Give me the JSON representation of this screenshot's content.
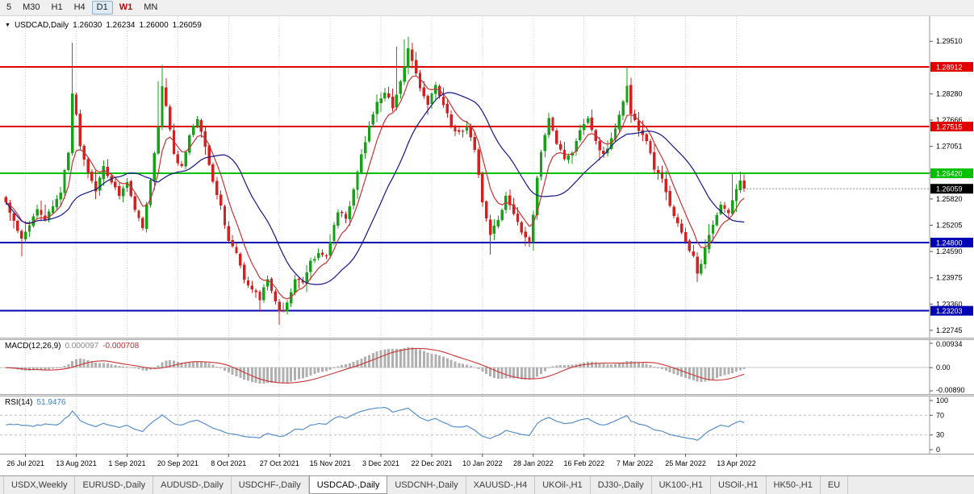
{
  "toolbar": {
    "periods": [
      {
        "label": "5",
        "active": false,
        "accent": false
      },
      {
        "label": "M30",
        "active": false,
        "accent": false
      },
      {
        "label": "H1",
        "active": false,
        "accent": false
      },
      {
        "label": "H4",
        "active": false,
        "accent": false
      },
      {
        "label": "D1",
        "active": true,
        "accent": false
      },
      {
        "label": "W1",
        "active": false,
        "accent": true
      },
      {
        "label": "MN",
        "active": false,
        "accent": false
      }
    ]
  },
  "chart": {
    "header": {
      "symbol": "USDCAD,Daily",
      "open": "1.26030",
      "high": "1.26234",
      "low": "1.26000",
      "close": "1.26059"
    }
  },
  "chart_data": {
    "type": "candlestick",
    "symbol": "USDCAD",
    "timeframe": "Daily",
    "num_candles": 190,
    "price_range": [
      1.22574,
      1.30099
    ],
    "up_color": "#15a315",
    "down_color": "#d32020",
    "y_ticks": [
      {
        "label": "1.29510",
        "value": 1.2951
      },
      {
        "label": "1.28280",
        "value": 1.2828
      },
      {
        "label": "1.27666",
        "value": 1.27666
      },
      {
        "label": "1.27051",
        "value": 1.27051
      },
      {
        "label": "1.26437",
        "value": 1.26437
      },
      {
        "label": "1.25820",
        "value": 1.2582
      },
      {
        "label": "1.25205",
        "value": 1.25205
      },
      {
        "label": "1.24590",
        "value": 1.2459
      },
      {
        "label": "1.23975",
        "value": 1.23975
      },
      {
        "label": "1.23360",
        "value": 1.2336
      },
      {
        "label": "1.22745",
        "value": 1.22745
      }
    ],
    "x_labels": [
      {
        "idx": 5,
        "text": "26 Jul 2021"
      },
      {
        "idx": 18,
        "text": "13 Aug 2021"
      },
      {
        "idx": 31,
        "text": "1 Sep 2021"
      },
      {
        "idx": 44,
        "text": "20 Sep 2021"
      },
      {
        "idx": 57,
        "text": "8 Oct 2021"
      },
      {
        "idx": 70,
        "text": "27 Oct 2021"
      },
      {
        "idx": 83,
        "text": "15 Nov 2021"
      },
      {
        "idx": 96,
        "text": "3 Dec 2021"
      },
      {
        "idx": 109,
        "text": "22 Dec 2021"
      },
      {
        "idx": 122,
        "text": "10 Jan 2022"
      },
      {
        "idx": 135,
        "text": "28 Jan 2022"
      },
      {
        "idx": 148,
        "text": "16 Feb 2022"
      },
      {
        "idx": 161,
        "text": "7 Mar 2022"
      },
      {
        "idx": 174,
        "text": "25 Mar 2022"
      },
      {
        "idx": 187,
        "text": "13 Apr 2022"
      }
    ],
    "close_anchors": [
      [
        0,
        1.257
      ],
      [
        2,
        1.2535
      ],
      [
        4,
        1.2487
      ],
      [
        6,
        1.252
      ],
      [
        8,
        1.2555
      ],
      [
        10,
        1.253
      ],
      [
        12,
        1.2565
      ],
      [
        14,
        1.26
      ],
      [
        16,
        1.269
      ],
      [
        17,
        1.283
      ],
      [
        18,
        1.278
      ],
      [
        19,
        1.2705
      ],
      [
        21,
        1.2645
      ],
      [
        23,
        1.2605
      ],
      [
        25,
        1.2655
      ],
      [
        27,
        1.2625
      ],
      [
        29,
        1.259
      ],
      [
        31,
        1.2625
      ],
      [
        33,
        1.2555
      ],
      [
        35,
        1.2515
      ],
      [
        37,
        1.2625
      ],
      [
        39,
        1.2755
      ],
      [
        40,
        1.2845
      ],
      [
        41,
        1.2805
      ],
      [
        43,
        1.2685
      ],
      [
        45,
        1.2655
      ],
      [
        47,
        1.2735
      ],
      [
        49,
        1.2765
      ],
      [
        51,
        1.2705
      ],
      [
        53,
        1.2625
      ],
      [
        55,
        1.2565
      ],
      [
        57,
        1.2485
      ],
      [
        59,
        1.2455
      ],
      [
        61,
        1.2395
      ],
      [
        63,
        1.2375
      ],
      [
        65,
        1.2345
      ],
      [
        67,
        1.2395
      ],
      [
        69,
        1.2345
      ],
      [
        70,
        1.2315
      ],
      [
        72,
        1.2335
      ],
      [
        74,
        1.2395
      ],
      [
        76,
        1.2385
      ],
      [
        78,
        1.2435
      ],
      [
        80,
        1.2455
      ],
      [
        82,
        1.2445
      ],
      [
        83,
        1.2485
      ],
      [
        85,
        1.2555
      ],
      [
        87,
        1.2535
      ],
      [
        89,
        1.2605
      ],
      [
        91,
        1.2685
      ],
      [
        93,
        1.2755
      ],
      [
        95,
        1.2805
      ],
      [
        97,
        1.2835
      ],
      [
        99,
        1.2795
      ],
      [
        101,
        1.2855
      ],
      [
        103,
        1.2935
      ],
      [
        104,
        1.2905
      ],
      [
        106,
        1.2845
      ],
      [
        108,
        1.2805
      ],
      [
        110,
        1.2845
      ],
      [
        112,
        1.2805
      ],
      [
        114,
        1.2755
      ],
      [
        116,
        1.2735
      ],
      [
        118,
        1.2755
      ],
      [
        120,
        1.2695
      ],
      [
        122,
        1.2575
      ],
      [
        124,
        1.2495
      ],
      [
        126,
        1.2535
      ],
      [
        128,
        1.2585
      ],
      [
        130,
        1.2545
      ],
      [
        132,
        1.2505
      ],
      [
        134,
        1.2485
      ],
      [
        135,
        1.2545
      ],
      [
        136,
        1.2635
      ],
      [
        137,
        1.2695
      ],
      [
        139,
        1.2775
      ],
      [
        141,
        1.2715
      ],
      [
        143,
        1.2675
      ],
      [
        145,
        1.2695
      ],
      [
        147,
        1.2745
      ],
      [
        149,
        1.2775
      ],
      [
        151,
        1.2715
      ],
      [
        153,
        1.2685
      ],
      [
        155,
        1.2725
      ],
      [
        157,
        1.2775
      ],
      [
        159,
        1.2845
      ],
      [
        160,
        1.2785
      ],
      [
        162,
        1.2745
      ],
      [
        164,
        1.2715
      ],
      [
        166,
        1.2655
      ],
      [
        168,
        1.2625
      ],
      [
        170,
        1.2565
      ],
      [
        172,
        1.2525
      ],
      [
        174,
        1.2485
      ],
      [
        176,
        1.2445
      ],
      [
        177,
        1.2405
      ],
      [
        179,
        1.2465
      ],
      [
        181,
        1.2525
      ],
      [
        183,
        1.2565
      ],
      [
        185,
        1.2545
      ],
      [
        187,
        1.2605
      ],
      [
        188,
        1.2625
      ],
      [
        189,
        1.26059
      ]
    ],
    "wick_highs": [
      [
        17,
        1.2948
      ],
      [
        39,
        1.2858
      ],
      [
        40,
        1.2896
      ],
      [
        100,
        1.2938
      ],
      [
        102,
        1.2955
      ],
      [
        103,
        1.2962
      ],
      [
        104,
        1.2948
      ],
      [
        159,
        1.2892
      ],
      [
        186,
        1.2642
      ],
      [
        188,
        1.2646
      ]
    ],
    "wick_lows": [
      [
        4,
        1.2448
      ],
      [
        65,
        1.2318
      ],
      [
        70,
        1.2288
      ],
      [
        124,
        1.2452
      ],
      [
        177,
        1.2388
      ]
    ],
    "hlines": [
      {
        "value": 1.28912,
        "label": "1.28912",
        "color": "#e00000",
        "width": 1.8
      },
      {
        "value": 1.27515,
        "label": "1.27515",
        "color": "#e00000",
        "width": 1.8
      },
      {
        "value": 1.2642,
        "label": "1.26420",
        "color": "#00c000",
        "width": 2.2
      },
      {
        "value": 1.248,
        "label": "1.24800",
        "color": "#0404b4",
        "width": 2.0
      },
      {
        "value": 1.23203,
        "label": "1.23203",
        "color": "#0404b4",
        "width": 2.0
      }
    ],
    "current_price": {
      "value": 1.26059,
      "label": "1.26059",
      "box_color": "#000000"
    },
    "moving_averages": [
      {
        "name": "fast",
        "method": "ema",
        "period": 7,
        "color": "#c83232"
      },
      {
        "name": "slow",
        "method": "sma",
        "period": 21,
        "color": "#15158c"
      }
    ],
    "macd": {
      "label": "MACD(12,26,9)",
      "value_main": "0.000097",
      "value_signal": "-0.000708",
      "range": [
        -0.0089,
        0.00934
      ],
      "axis": [
        {
          "label": "0.00934",
          "value": 0.00934
        },
        {
          "label": "0.00",
          "value": 0
        },
        {
          "label": "-0.00890",
          "value": -0.0089
        }
      ],
      "hist_color": "#b0b0b0",
      "signal_color": "#cc3333"
    },
    "rsi": {
      "label": "RSI(14)",
      "value": "51.9476",
      "period": 14,
      "levels": [
        70,
        30
      ],
      "axis": [
        {
          "label": "100",
          "value": 100
        },
        {
          "label": "70",
          "value": 70
        },
        {
          "label": "30",
          "value": 30
        },
        {
          "label": "0",
          "value": 0
        }
      ],
      "line_color": "#4a86c8"
    }
  },
  "tabs": [
    {
      "label": "USDX,Weekly",
      "active": false
    },
    {
      "label": "EURUSD-,Daily",
      "active": false
    },
    {
      "label": "AUDUSD-,Daily",
      "active": false
    },
    {
      "label": "USDCHF-,Daily",
      "active": false
    },
    {
      "label": "USDCAD-,Daily",
      "active": true
    },
    {
      "label": "USDCNH-,Daily",
      "active": false
    },
    {
      "label": "XAUUSD-,H4",
      "active": false
    },
    {
      "label": "UKOil-,H1",
      "active": false
    },
    {
      "label": "DJ30-,Daily",
      "active": false
    },
    {
      "label": "UK100-,H1",
      "active": false
    },
    {
      "label": "USOil-,H1",
      "active": false
    },
    {
      "label": "HK50-,H1",
      "active": false
    },
    {
      "label": "EU",
      "active": false
    }
  ]
}
